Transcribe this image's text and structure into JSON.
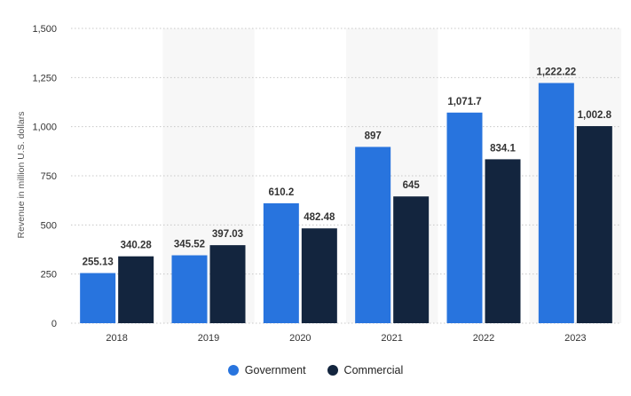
{
  "chart_data": {
    "type": "bar",
    "categories": [
      "2018",
      "2019",
      "2020",
      "2021",
      "2022",
      "2023"
    ],
    "series": [
      {
        "name": "Government",
        "color": "#2874de",
        "values": [
          255.13,
          345.52,
          610.2,
          897,
          1071.7,
          1222.22
        ],
        "labels": [
          "255.13",
          "345.52",
          "610.2",
          "897",
          "1,071.7",
          "1,222.22"
        ]
      },
      {
        "name": "Commercial",
        "color": "#13253e",
        "values": [
          340.28,
          397.03,
          482.48,
          645,
          834.1,
          1002.8
        ],
        "labels": [
          "340.28",
          "397.03",
          "482.48",
          "645",
          "834.1",
          "1,002.8"
        ]
      }
    ],
    "ylabel": "Revenue in million U.S. dollars",
    "xlabel": "",
    "ylim": [
      0,
      1500
    ],
    "yticks": [
      0,
      250,
      500,
      750,
      1000,
      1250,
      1500
    ],
    "ytick_labels": [
      "0",
      "250",
      "500",
      "750",
      "1,000",
      "1,250",
      "1,500"
    ],
    "grid": true,
    "alternating_band_color": "#f7f7f7",
    "legend_position": "bottom-center"
  }
}
